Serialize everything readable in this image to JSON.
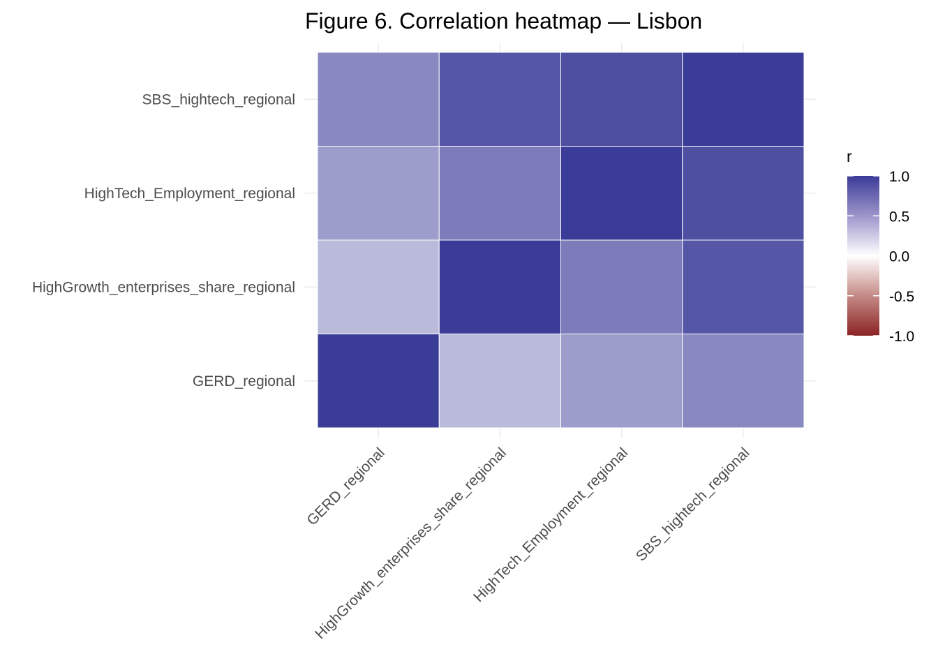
{
  "chart_data": {
    "type": "heatmap",
    "title": "Figure 6. Correlation heatmap — Lisbon",
    "xlabel": "",
    "ylabel": "",
    "x_categories": [
      "GERD_regional",
      "HighGrowth_enterprises_share_regional",
      "HighTech_Employment_regional",
      "SBS_hightech_regional"
    ],
    "y_categories": [
      "GERD_regional",
      "HighGrowth_enterprises_share_regional",
      "HighTech_Employment_regional",
      "SBS_hightech_regional"
    ],
    "values": [
      [
        1.0,
        0.35,
        0.5,
        0.6
      ],
      [
        0.35,
        1.0,
        0.67,
        0.86
      ],
      [
        0.5,
        0.67,
        1.0,
        0.9
      ],
      [
        0.6,
        0.86,
        0.9,
        1.0
      ]
    ],
    "legend": {
      "title": "r",
      "ticks": [
        1.0,
        0.5,
        0.0,
        -0.5,
        -1.0
      ],
      "tick_labels": [
        "1.0",
        "0.5",
        "0.0",
        "-0.5",
        "-1.0"
      ],
      "placement": "right"
    },
    "color_scale": {
      "low": "#8b2323",
      "mid": "#ffffff",
      "high": "#3b3b98",
      "limits": [
        -1,
        1
      ]
    },
    "grid": true
  }
}
